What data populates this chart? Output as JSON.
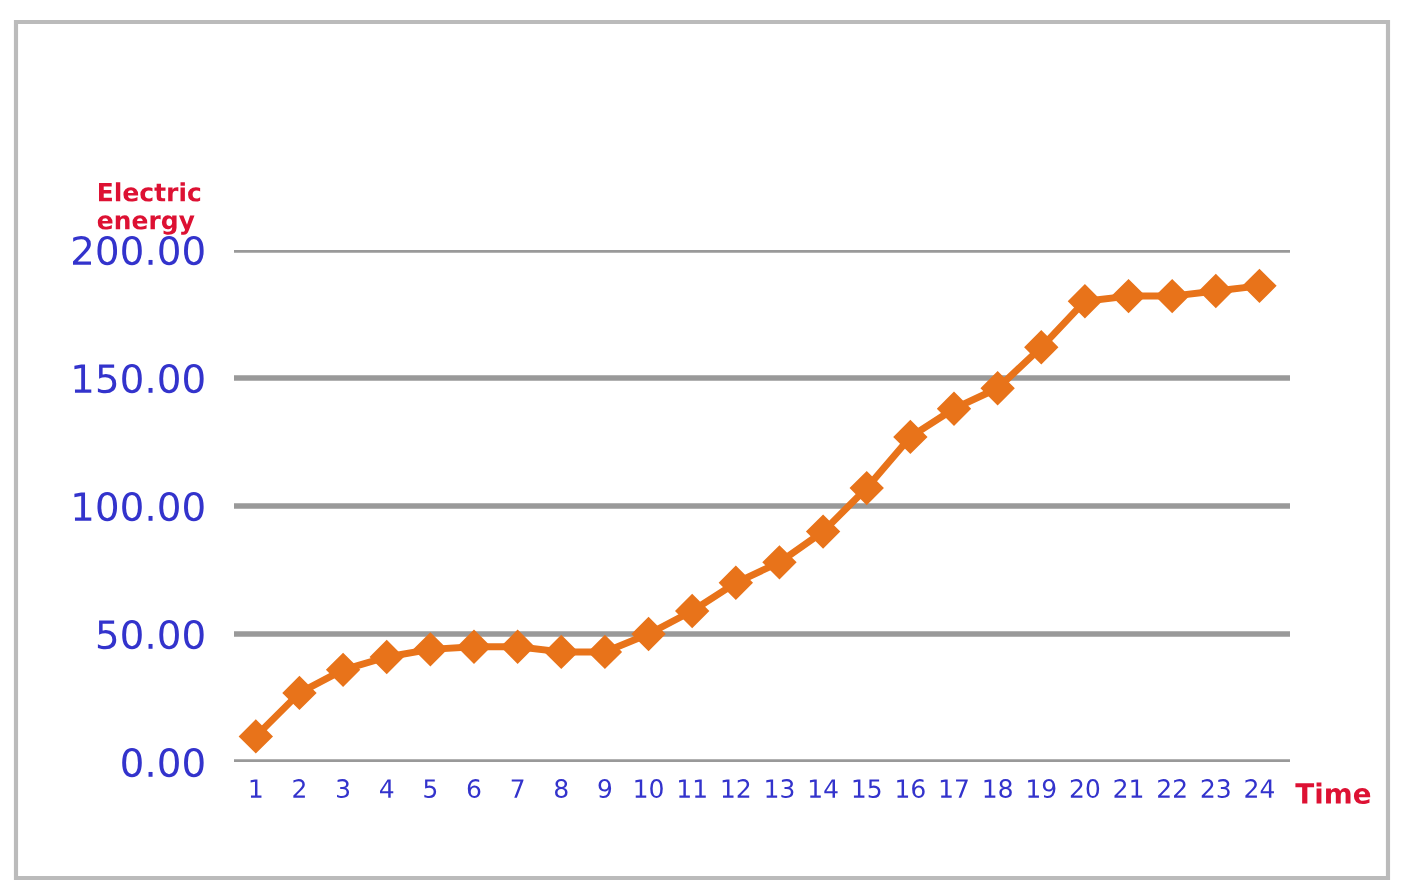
{
  "chart_data": {
    "type": "line",
    "xlabel": "Time",
    "ylabel": "Electric\nenergy",
    "categories": [
      "1",
      "2",
      "3",
      "4",
      "5",
      "6",
      "7",
      "8",
      "9",
      "10",
      "11",
      "12",
      "13",
      "14",
      "15",
      "16",
      "17",
      "18",
      "19",
      "20",
      "21",
      "22",
      "23",
      "24"
    ],
    "series": [
      {
        "color": "#e8731a",
        "values": [
          10,
          27,
          36,
          41,
          44,
          45,
          45,
          43,
          43,
          50,
          59,
          70,
          78,
          90,
          107,
          127,
          138,
          146,
          162,
          180,
          182,
          182,
          184,
          186
        ]
      }
    ],
    "ylim": [
      0,
      200
    ],
    "yticks": [
      {
        "value": 0,
        "label": "0.00"
      },
      {
        "value": 50,
        "label": "50.00"
      },
      {
        "value": 100,
        "label": "100.00"
      },
      {
        "value": 150,
        "label": "150.00"
      },
      {
        "value": 200,
        "label": "200.00"
      }
    ],
    "grid": "y",
    "marker": "diamond",
    "line_style": "solid",
    "legend": false
  }
}
